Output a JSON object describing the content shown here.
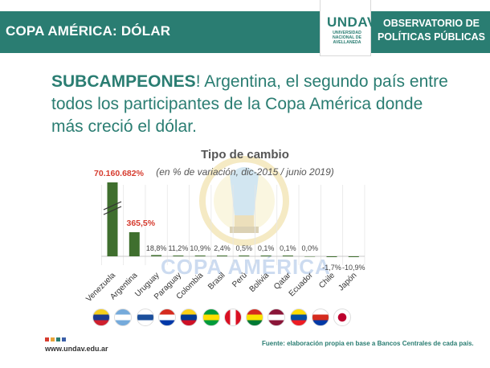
{
  "header": {
    "title": "COPA AMÉRICA: DÓLAR",
    "logo_word": "UNDAV",
    "logo_sub": "UNIVERSIDAD NACIONAL DE AVELLANEDA",
    "observatory_line1": "OBSERVATORIO DE",
    "observatory_line2": "POLÍTICAS PÚBLICAS"
  },
  "headline": {
    "bold": "SUBCAMPEONES",
    "rest": "! Argentina, el segundo país entre todos los participantes de la Copa América donde más creció el dólar."
  },
  "watermark": "COPA AMÉRICA",
  "colors": {
    "brand": "#2a7d72",
    "bar": "#3f6f2e",
    "label_red": "#d63c2f",
    "label_gray": "#444444"
  },
  "chart_data": {
    "type": "bar",
    "title": "Tipo de cambio",
    "subtitle": "(en % de variación, dic-2015 / junio 2019)",
    "categories": [
      "Venezuela",
      "Argentina",
      "Uruguay",
      "Paraguay",
      "Colombia",
      "Brasil",
      "Perú",
      "Bolivia",
      "Qatar",
      "Ecuador",
      "Chile",
      "Japón"
    ],
    "values": [
      70160682,
      365.5,
      18.8,
      11.2,
      10.9,
      2.4,
      0.5,
      0.1,
      0.1,
      0.0,
      -1.7,
      -10.9
    ],
    "value_labels": [
      "70.160.682%",
      "365,5%",
      "18,8%",
      "11,2%",
      "10,9%",
      "2,4%",
      "0,5%",
      "0,1%",
      "0,1%",
      "0,0%",
      "-1,7%",
      "-10,9%"
    ],
    "axis_break": "Venezuela",
    "grid": "vertical"
  },
  "flags": [
    "venezuela-flag-icon",
    "argentina-flag-icon",
    "uruguay-flag-icon",
    "paraguay-flag-icon",
    "colombia-flag-icon",
    "brazil-flag-icon",
    "peru-flag-icon",
    "bolivia-flag-icon",
    "qatar-flag-icon",
    "ecuador-flag-icon",
    "chile-flag-icon",
    "japan-flag-icon"
  ],
  "footer": {
    "url": "www.undav.edu.ar",
    "source": "Fuente: elaboración propia en base a Bancos Centrales de cada país."
  }
}
